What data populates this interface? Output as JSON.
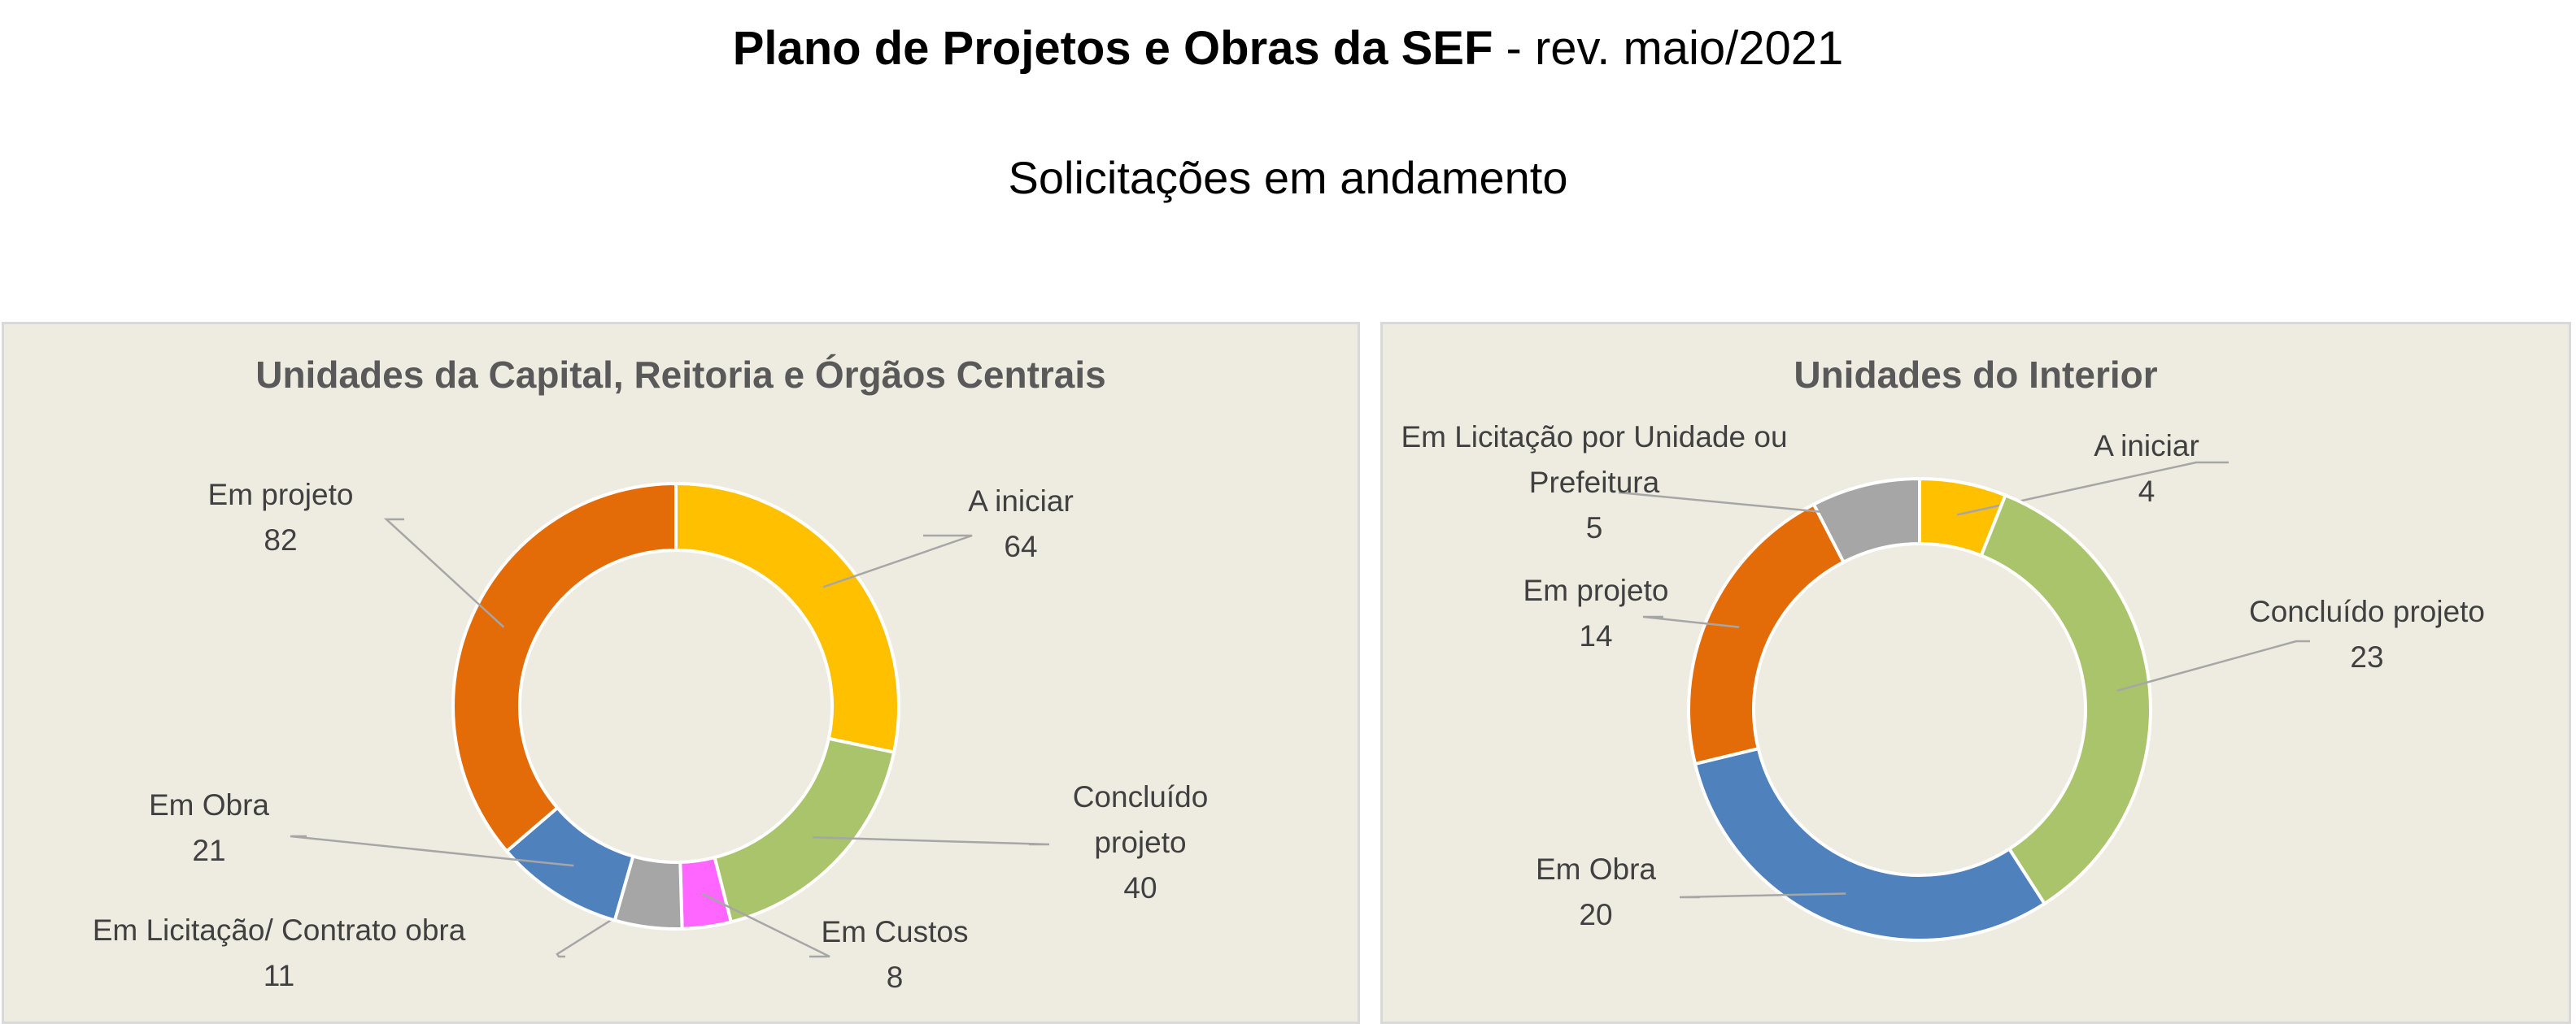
{
  "header": {
    "title_bold": "Plano de Projetos e Obras da SEF",
    "title_rest": " - rev. maio/2021",
    "subtitle": "Solicitações em andamento"
  },
  "chart_data": [
    {
      "type": "pie",
      "variant": "doughnut",
      "title": "Unidades da Capital, Reitoria e Órgãos Centrais",
      "slices": [
        {
          "label": [
            "A iniciar"
          ],
          "value": 64,
          "color": "#ffc000"
        },
        {
          "label": [
            "Concluído",
            "projeto"
          ],
          "value": 40,
          "color": "#a9c46a"
        },
        {
          "label": [
            "Em Custos"
          ],
          "value": 8,
          "color": "#ff66ff"
        },
        {
          "label": [
            "Em Licitação/ Contrato obra"
          ],
          "value": 11,
          "color": "#a6a6a6"
        },
        {
          "label": [
            "Em Obra"
          ],
          "value": 21,
          "color": "#4f81bd"
        },
        {
          "label": [
            "Em projeto"
          ],
          "value": 82,
          "color": "#e36c09"
        }
      ]
    },
    {
      "type": "pie",
      "variant": "doughnut",
      "title": "Unidades do Interior",
      "slices": [
        {
          "label": [
            "A iniciar"
          ],
          "value": 4,
          "color": "#ffc000"
        },
        {
          "label": [
            "Concluído projeto"
          ],
          "value": 23,
          "color": "#a9c46a"
        },
        {
          "label": [
            "Em Obra"
          ],
          "value": 20,
          "color": "#4f81bd"
        },
        {
          "label": [
            "Em projeto"
          ],
          "value": 14,
          "color": "#e36c09"
        },
        {
          "label": [
            "Em Licitação por Unidade ou",
            "Prefeitura"
          ],
          "value": 5,
          "color": "#a6a6a6"
        }
      ]
    }
  ]
}
